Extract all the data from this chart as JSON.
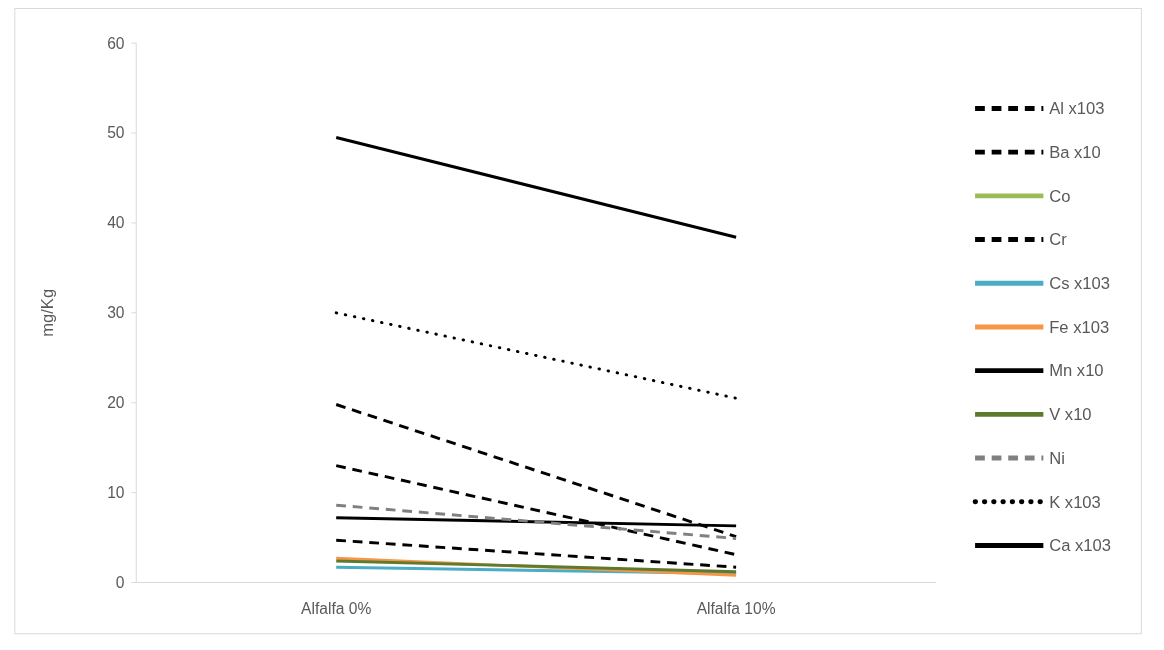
{
  "chart_data": {
    "type": "line",
    "ylabel": "mg/Kg",
    "categories": [
      "Alfalfa 0%",
      "Alfalfa 10%"
    ],
    "ylim": [
      0,
      60
    ],
    "yticks": [
      0,
      10,
      20,
      30,
      40,
      50,
      60
    ],
    "grid": false,
    "legend": "right",
    "marker": "none",
    "series": [
      {
        "name": "Al x103",
        "color": "#000000",
        "line_style": "dashed",
        "values": [
          19.8,
          5.1
        ]
      },
      {
        "name": "Ba x10",
        "color": "#000000",
        "line_style": "dashed",
        "values": [
          4.7,
          1.7
        ]
      },
      {
        "name": "Co",
        "color": "#9bbb59",
        "line_style": "solid",
        "values": [
          null,
          null
        ]
      },
      {
        "name": "Cr",
        "color": "#000000",
        "line_style": "dashed",
        "values": [
          13.0,
          3.1
        ]
      },
      {
        "name": "Cs x103",
        "color": "#4bacc6",
        "line_style": "solid",
        "values": [
          1.7,
          1.0
        ]
      },
      {
        "name": "Fe x103",
        "color": "#f79646",
        "line_style": "solid",
        "values": [
          2.7,
          0.8
        ]
      },
      {
        "name": "Mn x10",
        "color": "#000000",
        "line_style": "solid",
        "values": [
          7.2,
          6.3
        ]
      },
      {
        "name": "V x10",
        "color": "#5e7a2e",
        "line_style": "solid",
        "values": [
          2.4,
          1.2
        ]
      },
      {
        "name": "Ni",
        "color": "#808080",
        "line_style": "dashed",
        "values": [
          8.6,
          4.9
        ]
      },
      {
        "name": "K x103",
        "color": "#000000",
        "line_style": "dotted",
        "values": [
          30.0,
          20.5
        ]
      },
      {
        "name": "Ca x103",
        "color": "#000000",
        "line_style": "solid",
        "values": [
          49.5,
          38.4
        ]
      }
    ]
  }
}
